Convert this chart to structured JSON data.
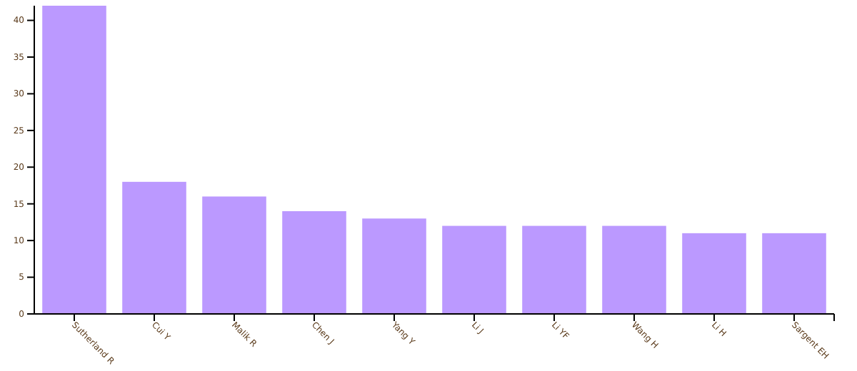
{
  "chart_data": {
    "type": "bar",
    "categories": [
      "Sutherland R",
      "Cui Y",
      "Malik R",
      "Chen J",
      "Yang Y",
      "Li J",
      "Li YF",
      "Wang H",
      "Li H",
      "Sargent EH"
    ],
    "values": [
      42,
      18,
      16,
      14,
      13,
      12,
      12,
      12,
      11,
      11
    ],
    "color": "#bb99ff",
    "ylim": [
      0,
      42
    ],
    "yticks": [
      0,
      5,
      10,
      15,
      20,
      25,
      30,
      35,
      40
    ],
    "grid": false
  }
}
